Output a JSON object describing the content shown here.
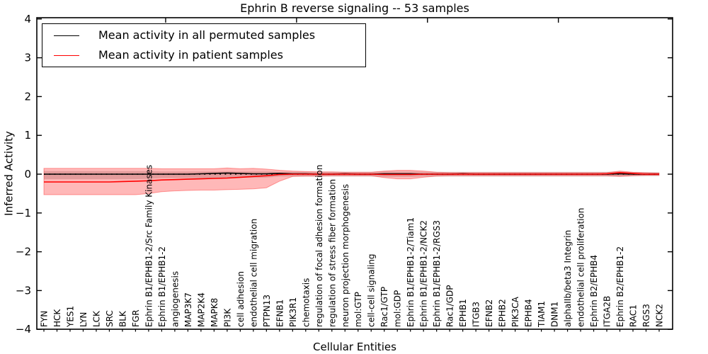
{
  "title": "Ephrin B reverse signaling -- 53 samples",
  "legend": {
    "items": [
      {
        "label": "Mean activity in all permuted samples",
        "color": "#000000"
      },
      {
        "label": "Mean activity in patient samples",
        "color": "#ff0000"
      }
    ]
  },
  "chart_data": {
    "type": "line",
    "title": "Ephrin B reverse signaling -- 53 samples",
    "xlabel": "Cellular Entities",
    "ylabel": "Inferred Activity",
    "ylim": [
      -4,
      4
    ],
    "yticks": [
      -4,
      -3,
      -2,
      -1,
      0,
      1,
      2,
      3,
      4
    ],
    "grid": false,
    "zero_line": true,
    "legend_position": "upper left",
    "categories": [
      "FYN",
      "HCK",
      "YES1",
      "LYN",
      "LCK",
      "SRC",
      "BLK",
      "FGR",
      "Ephrin B1/EPHB1-2/Src Family Kinases",
      "Ephrin B1/EPHB1-2",
      "angiogenesis",
      "MAP3K7",
      "MAP2K4",
      "MAPK8",
      "PI3K",
      "cell adhesion",
      "endothelial cell migration",
      "PTPN13",
      "EFNB1",
      "PIK3R1",
      "chemotaxis",
      "regulation of focal adhesion formation",
      "regulation of stress fiber formation",
      "neuron projection morphogenesis",
      "mol:GTP",
      "cell-cell signaling",
      "Rac1/GTP",
      "mol:GDP",
      "Ephrin B1/EPHB1-2/Tiam1",
      "Ephrin B1/EPHB1-2/NCK2",
      "Ephrin B1/EPHB1-2/RGS3",
      "Rac1/GDP",
      "EPHB1",
      "ITGB3",
      "EFNB2",
      "EPHB2",
      "PIK3CA",
      "EPHB4",
      "TIAM1",
      "DNM1",
      "alphaIIb/beta3 Integrin",
      "endothelial cell proliferation",
      "Ephrin B2/EPHB4",
      "ITGA2B",
      "Ephrin B2/EPHB1-2",
      "RAC1",
      "RGS3",
      "NCK2"
    ],
    "series": [
      {
        "name": "Mean activity in all permuted samples",
        "color": "#000000",
        "band_color": "#808080",
        "band_opacity": 0.3,
        "values": [
          0,
          0,
          0,
          0,
          0,
          0,
          0,
          0,
          0,
          0,
          0,
          0,
          0.01,
          0.02,
          0.03,
          0.02,
          0.01,
          0.01,
          0.02,
          0.01,
          0.01,
          0,
          0,
          0.01,
          0,
          0,
          0.01,
          0.01,
          0.01,
          0,
          0,
          0,
          0.01,
          0,
          0,
          0,
          0,
          0,
          0,
          0,
          0,
          0,
          0,
          0,
          0.01,
          0,
          0,
          0
        ],
        "band_upper": [
          0.08,
          0.08,
          0.08,
          0.08,
          0.08,
          0.08,
          0.08,
          0.08,
          0.08,
          0.07,
          0.07,
          0.07,
          0.07,
          0.07,
          0.07,
          0.07,
          0.07,
          0.07,
          0.06,
          0.06,
          0.06,
          0.06,
          0.06,
          0.06,
          0.06,
          0.06,
          0.07,
          0.07,
          0.07,
          0.06,
          0.06,
          0.06,
          0.06,
          0.06,
          0.06,
          0.06,
          0.06,
          0.06,
          0.06,
          0.06,
          0.06,
          0.06,
          0.06,
          0.06,
          0.07,
          0.05,
          0.05,
          0.05
        ],
        "band_lower": [
          -0.13,
          -0.13,
          -0.13,
          -0.13,
          -0.13,
          -0.13,
          -0.13,
          -0.13,
          -0.12,
          -0.1,
          -0.1,
          -0.1,
          -0.1,
          -0.1,
          -0.09,
          -0.09,
          -0.09,
          -0.09,
          -0.06,
          -0.06,
          -0.06,
          -0.06,
          -0.06,
          -0.06,
          -0.06,
          -0.06,
          -0.07,
          -0.07,
          -0.07,
          -0.06,
          -0.06,
          -0.06,
          -0.06,
          -0.06,
          -0.06,
          -0.06,
          -0.06,
          -0.06,
          -0.06,
          -0.06,
          -0.06,
          -0.06,
          -0.06,
          -0.06,
          -0.06,
          -0.05,
          -0.05,
          -0.05
        ]
      },
      {
        "name": "Mean activity in patient samples",
        "color": "#ff0000",
        "band_color": "#ff0000",
        "band_opacity": 0.28,
        "values": [
          -0.2,
          -0.2,
          -0.2,
          -0.2,
          -0.2,
          -0.2,
          -0.19,
          -0.18,
          -0.17,
          -0.15,
          -0.14,
          -0.13,
          -0.12,
          -0.11,
          -0.1,
          -0.08,
          -0.06,
          -0.04,
          -0.01,
          0,
          0,
          0,
          0,
          0,
          0,
          0,
          -0.01,
          -0.01,
          -0.01,
          0,
          0,
          0,
          0,
          0,
          0,
          0,
          0,
          0,
          0,
          0,
          0,
          0,
          0,
          0.01,
          0.04,
          0.02,
          0,
          0
        ],
        "band_upper": [
          0.15,
          0.15,
          0.15,
          0.15,
          0.15,
          0.15,
          0.15,
          0.15,
          0.15,
          0.14,
          0.14,
          0.14,
          0.14,
          0.14,
          0.16,
          0.14,
          0.15,
          0.13,
          0.1,
          0.08,
          0.07,
          0.06,
          0.06,
          0.05,
          0.05,
          0.05,
          0.08,
          0.1,
          0.1,
          0.08,
          0.05,
          0.04,
          0.04,
          0.04,
          0.04,
          0.04,
          0.04,
          0.04,
          0.04,
          0.04,
          0.04,
          0.04,
          0.04,
          0.04,
          0.08,
          0.05,
          0.04,
          0.03
        ],
        "band_lower": [
          -0.53,
          -0.53,
          -0.53,
          -0.53,
          -0.53,
          -0.53,
          -0.53,
          -0.53,
          -0.5,
          -0.45,
          -0.43,
          -0.42,
          -0.41,
          -0.41,
          -0.4,
          -0.39,
          -0.38,
          -0.35,
          -0.18,
          -0.06,
          -0.05,
          -0.05,
          -0.04,
          -0.04,
          -0.04,
          -0.04,
          -0.09,
          -0.12,
          -0.12,
          -0.08,
          -0.05,
          -0.04,
          -0.04,
          -0.04,
          -0.04,
          -0.04,
          -0.04,
          -0.04,
          -0.04,
          -0.04,
          -0.04,
          -0.04,
          -0.04,
          -0.04,
          -0.06,
          -0.04,
          -0.03,
          -0.03
        ]
      }
    ]
  }
}
